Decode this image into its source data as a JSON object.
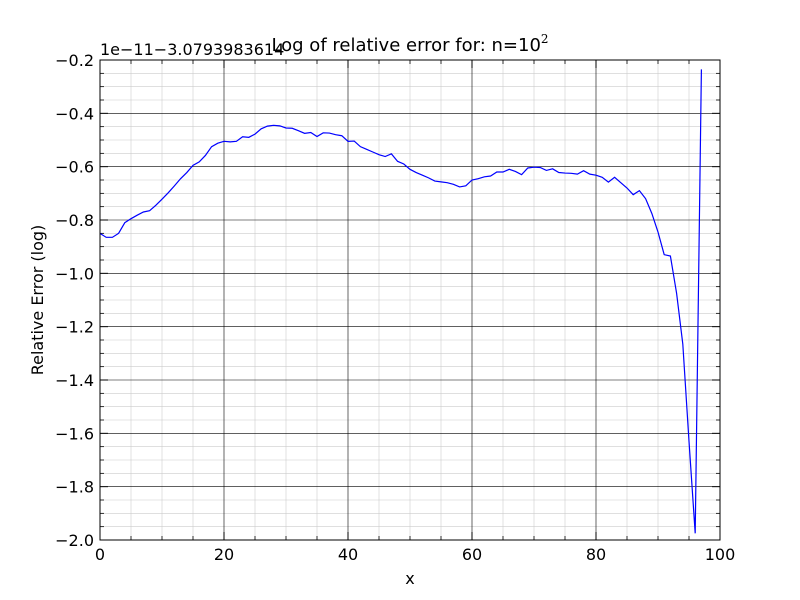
{
  "chart_data": {
    "type": "line",
    "title": "Log of relative error for: n=10",
    "title_sup": "2",
    "xlabel": "x",
    "ylabel": "Relative Error (log)",
    "offset_text": "1e−11−3.0793983614",
    "xlim": [
      0,
      100
    ],
    "ylim": [
      -2.0,
      -0.2
    ],
    "xticks": [
      0,
      20,
      40,
      60,
      80,
      100
    ],
    "xtick_labels": [
      "0",
      "20",
      "40",
      "60",
      "80",
      "100"
    ],
    "yticks": [
      -2.0,
      -1.8,
      -1.6,
      -1.4,
      -1.2,
      -1.0,
      -0.8,
      -0.6,
      -0.4,
      -0.2
    ],
    "ytick_labels": [
      "−2.0",
      "−1.8",
      "−1.6",
      "−1.4",
      "−1.2",
      "−1.0",
      "−0.8",
      "−0.6",
      "−0.4",
      "−0.2"
    ],
    "x_minor_step": 5,
    "y_minor_step": 0.05,
    "grid": true,
    "series": [
      {
        "color": "#0000ff",
        "x": [
          0,
          1,
          2,
          3,
          4,
          5,
          6,
          7,
          8,
          9,
          10,
          11,
          12,
          13,
          14,
          15,
          16,
          17,
          18,
          19,
          20,
          21,
          22,
          23,
          24,
          25,
          26,
          27,
          28,
          29,
          30,
          31,
          32,
          33,
          34,
          35,
          36,
          37,
          38,
          39,
          40,
          41,
          42,
          43,
          44,
          45,
          46,
          47,
          48,
          49,
          50,
          51,
          52,
          53,
          54,
          55,
          56,
          57,
          58,
          59,
          60,
          61,
          62,
          63,
          64,
          65,
          66,
          67,
          68,
          69,
          70,
          71,
          72,
          73,
          74,
          75,
          76,
          77,
          78,
          79,
          80,
          81,
          82,
          83,
          84,
          85,
          86,
          87,
          88,
          89,
          90,
          91,
          92,
          93,
          94,
          95,
          96,
          97
        ],
        "y": [
          -0.85,
          -0.865,
          -0.865,
          -0.85,
          -0.81,
          -0.795,
          -0.782,
          -0.77,
          -0.765,
          -0.745,
          -0.722,
          -0.698,
          -0.672,
          -0.645,
          -0.622,
          -0.595,
          -0.582,
          -0.558,
          -0.525,
          -0.512,
          -0.505,
          -0.507,
          -0.505,
          -0.488,
          -0.49,
          -0.478,
          -0.458,
          -0.448,
          -0.445,
          -0.447,
          -0.455,
          -0.456,
          -0.465,
          -0.475,
          -0.472,
          -0.487,
          -0.473,
          -0.474,
          -0.48,
          -0.484,
          -0.505,
          -0.504,
          -0.525,
          -0.535,
          -0.545,
          -0.555,
          -0.562,
          -0.552,
          -0.58,
          -0.59,
          -0.61,
          -0.622,
          -0.632,
          -0.642,
          -0.654,
          -0.657,
          -0.66,
          -0.666,
          -0.676,
          -0.672,
          -0.65,
          -0.645,
          -0.638,
          -0.635,
          -0.62,
          -0.62,
          -0.61,
          -0.618,
          -0.63,
          -0.605,
          -0.602,
          -0.603,
          -0.614,
          -0.608,
          -0.622,
          -0.624,
          -0.625,
          -0.628,
          -0.615,
          -0.628,
          -0.632,
          -0.64,
          -0.658,
          -0.64,
          -0.66,
          -0.68,
          -0.705,
          -0.69,
          -0.72,
          -0.775,
          -0.845,
          -0.93,
          -0.935,
          -1.075,
          -1.265,
          -1.63,
          -1.975,
          -0.235
        ]
      }
    ]
  }
}
